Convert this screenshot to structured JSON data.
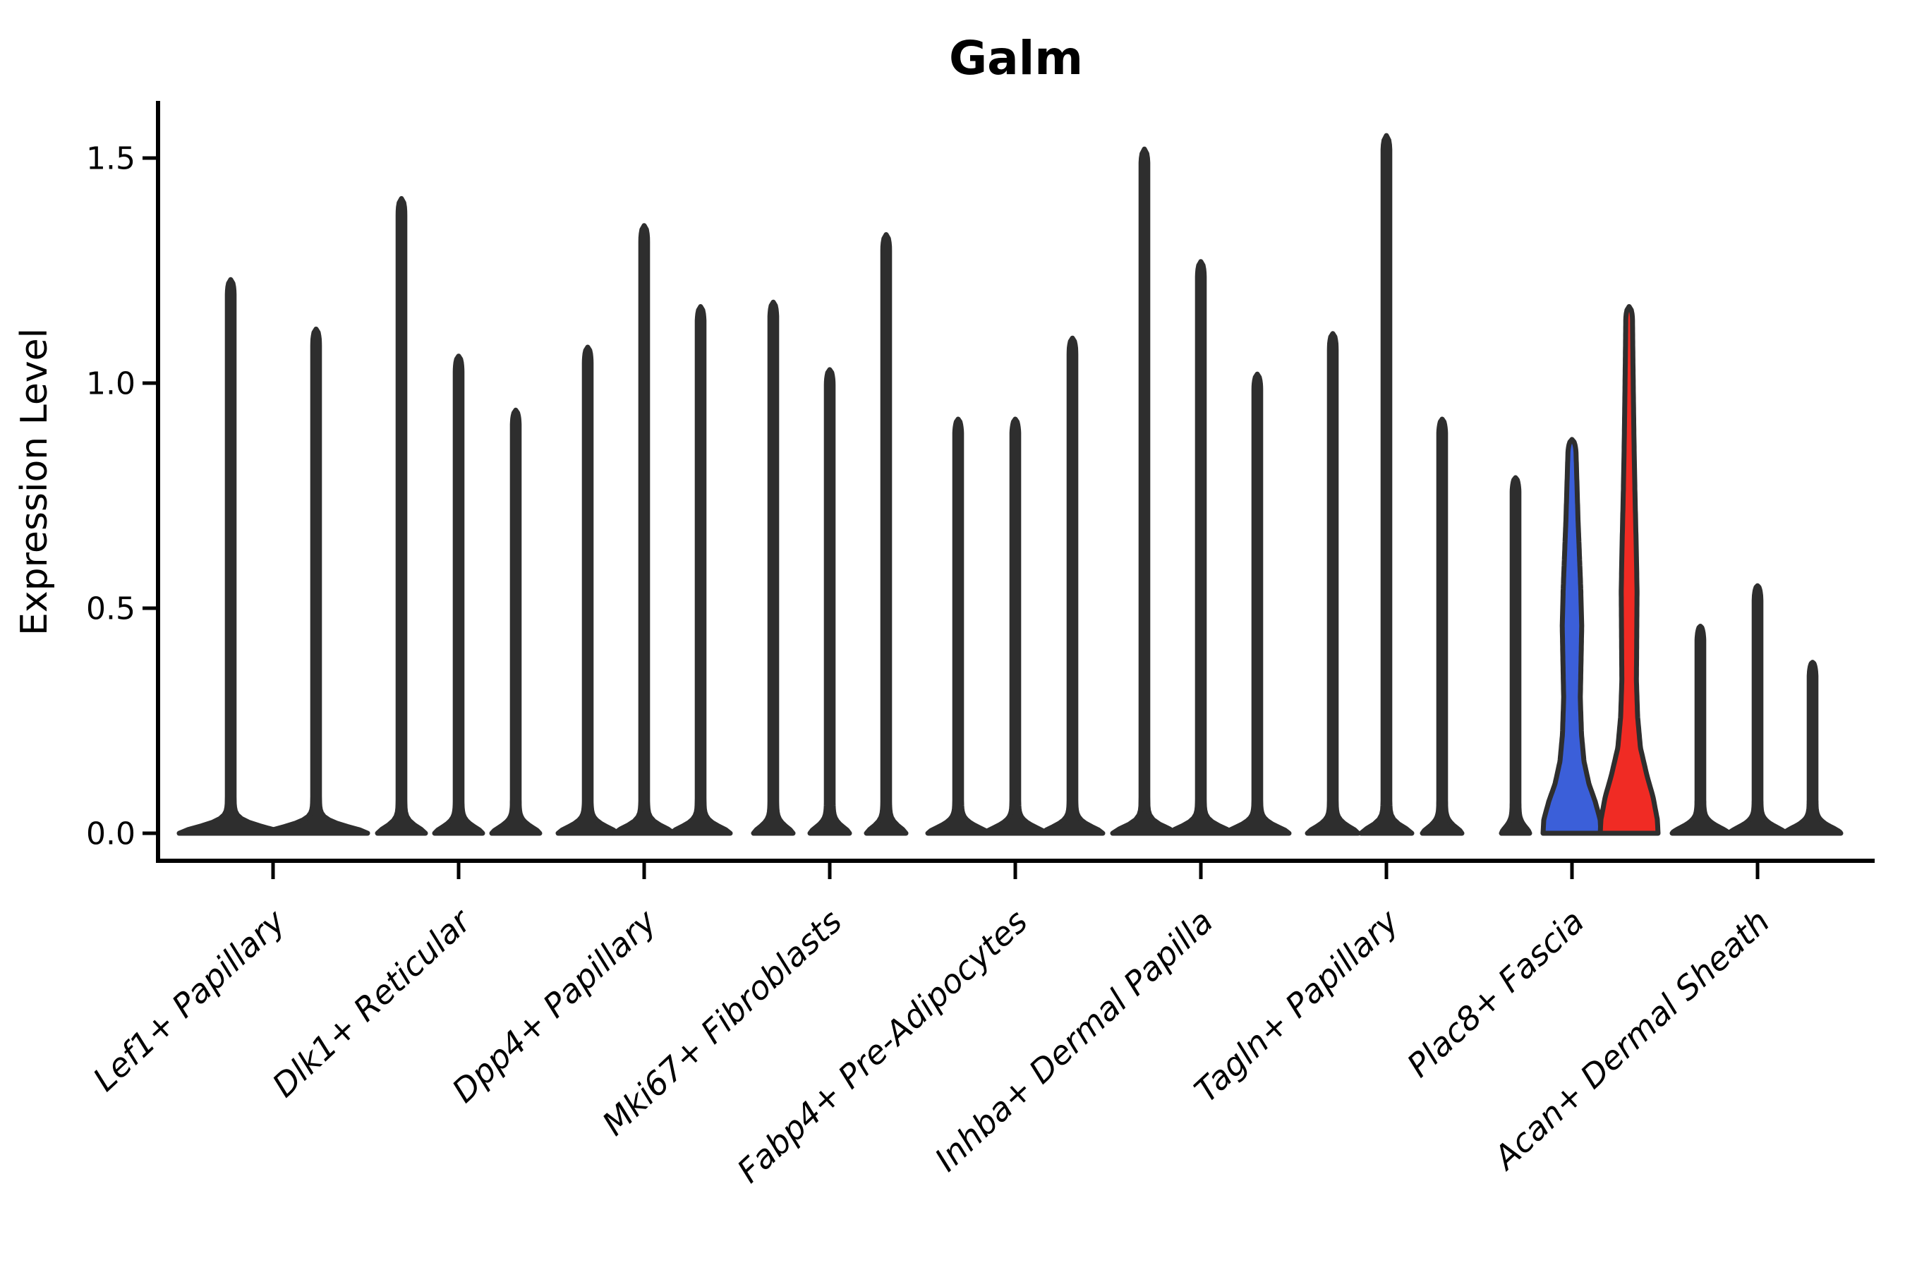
{
  "chart_data": {
    "type": "violin",
    "title": "Galm",
    "ylabel": "Expression Level",
    "xlabel": "",
    "ylim": [
      -0.06,
      1.62
    ],
    "grid": false,
    "legend": "none",
    "yticks": [
      {
        "value": 0.0,
        "label": "0.0"
      },
      {
        "value": 0.5,
        "label": "0.5"
      },
      {
        "value": 1.0,
        "label": "1.0"
      },
      {
        "value": 1.5,
        "label": "1.5"
      }
    ],
    "colors": {
      "violin_edge": "#2E2E2E",
      "violin_fill_default": "#2E2E2E",
      "highlight_blue": "#3B5FD9",
      "highlight_red": "#F02B24",
      "axis": "#000000",
      "background": "#FFFFFF"
    },
    "categories": [
      {
        "label": "Lef1+ Papillary",
        "violins": [
          {
            "offset": -60,
            "max_expression": 1.23,
            "base_half_width": 73
          },
          {
            "offset": 61,
            "max_expression": 1.12,
            "base_half_width": 73
          }
        ]
      },
      {
        "label": "Dlk1+ Reticular",
        "violins": [
          {
            "offset": -81,
            "max_expression": 1.41,
            "base_half_width": 34
          },
          {
            "offset": 0,
            "max_expression": 1.06,
            "base_half_width": 34
          },
          {
            "offset": 81,
            "max_expression": 0.94,
            "base_half_width": 34
          }
        ]
      },
      {
        "label": "Dpp4+ Papillary",
        "violins": [
          {
            "offset": -80,
            "max_expression": 1.08,
            "base_half_width": 42
          },
          {
            "offset": 0,
            "max_expression": 1.35,
            "base_half_width": 42
          },
          {
            "offset": 80,
            "max_expression": 1.17,
            "base_half_width": 42
          }
        ]
      },
      {
        "label": "Mki67+ Fibroblasts",
        "violins": [
          {
            "offset": -80,
            "max_expression": 1.18,
            "base_half_width": 28
          },
          {
            "offset": 0,
            "max_expression": 1.03,
            "base_half_width": 28
          },
          {
            "offset": 80,
            "max_expression": 1.33,
            "base_half_width": 28
          }
        ]
      },
      {
        "label": "Fabp4+ Pre-Adipocytes",
        "violins": [
          {
            "offset": -81,
            "max_expression": 0.92,
            "base_half_width": 43
          },
          {
            "offset": 0,
            "max_expression": 0.92,
            "base_half_width": 43
          },
          {
            "offset": 81,
            "max_expression": 1.1,
            "base_half_width": 43
          }
        ]
      },
      {
        "label": "Inhba+ Dermal Papilla",
        "violins": [
          {
            "offset": -80,
            "max_expression": 1.52,
            "base_half_width": 45
          },
          {
            "offset": 0,
            "max_expression": 1.27,
            "base_half_width": 45
          },
          {
            "offset": 80,
            "max_expression": 1.02,
            "base_half_width": 45
          }
        ]
      },
      {
        "label": "Tagln+ Papillary",
        "violins": [
          {
            "offset": -76,
            "max_expression": 1.11,
            "base_half_width": 36
          },
          {
            "offset": 0,
            "max_expression": 1.55,
            "base_half_width": 36
          },
          {
            "offset": 79,
            "max_expression": 0.92,
            "base_half_width": 28
          }
        ]
      },
      {
        "label": "Plac8+ Fascia",
        "violins": [
          {
            "offset": -80,
            "max_expression": 0.79,
            "base_half_width": 20
          },
          {
            "offset": 0,
            "max_expression": 0.875,
            "base_half_width": 41,
            "fill": "#3B5FD9",
            "profile": [
              [
                0,
                41
              ],
              [
                0.03,
                40
              ],
              [
                0.07,
                33
              ],
              [
                0.11,
                24
              ],
              [
                0.16,
                17
              ],
              [
                0.22,
                13.5
              ],
              [
                0.3,
                11.8
              ],
              [
                0.38,
                12.8
              ],
              [
                0.46,
                13.8
              ],
              [
                0.54,
                12.5
              ],
              [
                0.62,
                10.5
              ],
              [
                0.7,
                8.5
              ],
              [
                0.78,
                7.0
              ],
              [
                0.84,
                5.8
              ],
              [
                0.875,
                5.0
              ]
            ]
          },
          {
            "offset": 81,
            "max_expression": 1.17,
            "base_half_width": 41,
            "fill": "#F02B24",
            "profile": [
              [
                0,
                41
              ],
              [
                0.03,
                40
              ],
              [
                0.08,
                34
              ],
              [
                0.13,
                25
              ],
              [
                0.19,
                16
              ],
              [
                0.26,
                12
              ],
              [
                0.34,
                10.3
              ],
              [
                0.44,
                10.8
              ],
              [
                0.54,
                11.2
              ],
              [
                0.64,
                10.0
              ],
              [
                0.76,
                8.2
              ],
              [
                0.88,
                6.8
              ],
              [
                1.0,
                5.8
              ],
              [
                1.1,
                5.0
              ],
              [
                1.17,
                4.6
              ]
            ]
          }
        ]
      },
      {
        "label": "Acan+ Dermal Sheath",
        "violins": [
          {
            "offset": -81,
            "max_expression": 0.46,
            "base_half_width": 40
          },
          {
            "offset": 0,
            "max_expression": 0.55,
            "base_half_width": 40
          },
          {
            "offset": 78,
            "max_expression": 0.38,
            "base_half_width": 40
          }
        ]
      }
    ]
  }
}
